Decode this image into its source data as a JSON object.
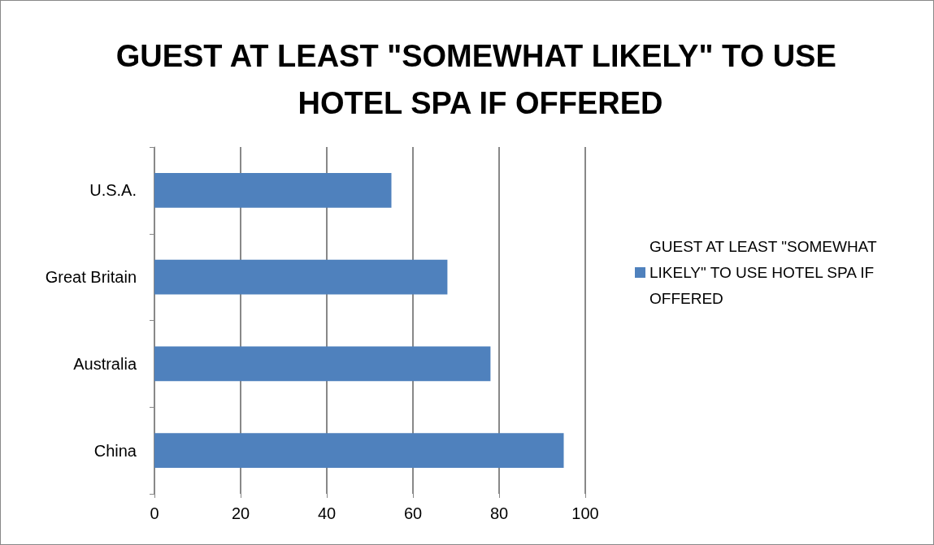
{
  "chart_data": {
    "type": "bar",
    "orientation": "horizontal",
    "title": "GUEST AT LEAST \"SOMEWHAT LIKELY\" TO USE HOTEL SPA IF OFFERED",
    "categories": [
      "U.S.A.",
      "Great Britain",
      "Australia",
      "China"
    ],
    "series": [
      {
        "name": "GUEST AT LEAST \"SOMEWHAT LIKELY\" TO USE HOTEL SPA IF OFFERED",
        "color": "#4f81bd",
        "values": [
          55,
          68,
          78,
          95
        ]
      }
    ],
    "xlim": [
      0,
      100
    ],
    "xticks": [
      0,
      20,
      40,
      60,
      80,
      100
    ],
    "grid": "x",
    "legend": "right"
  }
}
